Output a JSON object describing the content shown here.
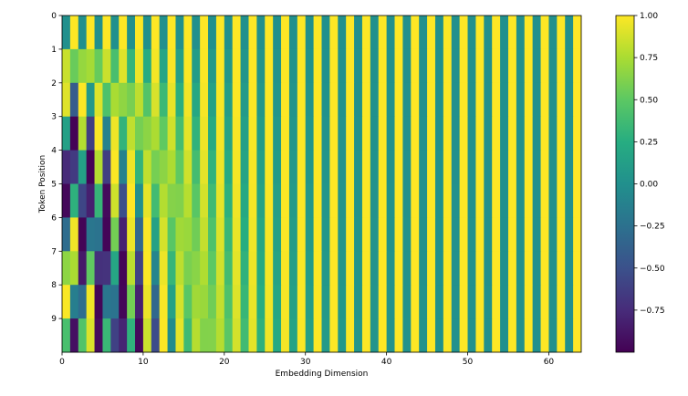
{
  "chart_data": {
    "type": "heatmap",
    "title": "",
    "xlabel": "Embedding Dimension",
    "ylabel": "Token Position",
    "x_range": [
      0,
      64
    ],
    "y_range": [
      0,
      10
    ],
    "y_inverted": true,
    "colormap": "viridis",
    "grid": false,
    "value_range": [
      -1.0,
      1.0
    ],
    "x_ticks": [
      0,
      10,
      20,
      30,
      40,
      50,
      60
    ],
    "y_ticks": [
      0,
      1,
      2,
      3,
      4,
      5,
      6,
      7,
      8,
      9
    ],
    "colorbar": {
      "placement": "right",
      "ticks": [
        1.0,
        0.75,
        0.5,
        0.25,
        0.0,
        -0.25,
        -0.5,
        -0.75
      ],
      "tick_labels": [
        "1.00",
        "0.75",
        "0.50",
        "0.25",
        "0.00",
        "−0.25",
        "−0.50",
        "−0.75"
      ]
    },
    "encoding": {
      "kind": "sinusoidal_positional_encoding",
      "positions": 10,
      "dimensions": 64,
      "even_dims": "sin(pos / 10000^(i/64))",
      "odd_dims": "cos(pos / 10000^((i-1)/64))"
    }
  }
}
